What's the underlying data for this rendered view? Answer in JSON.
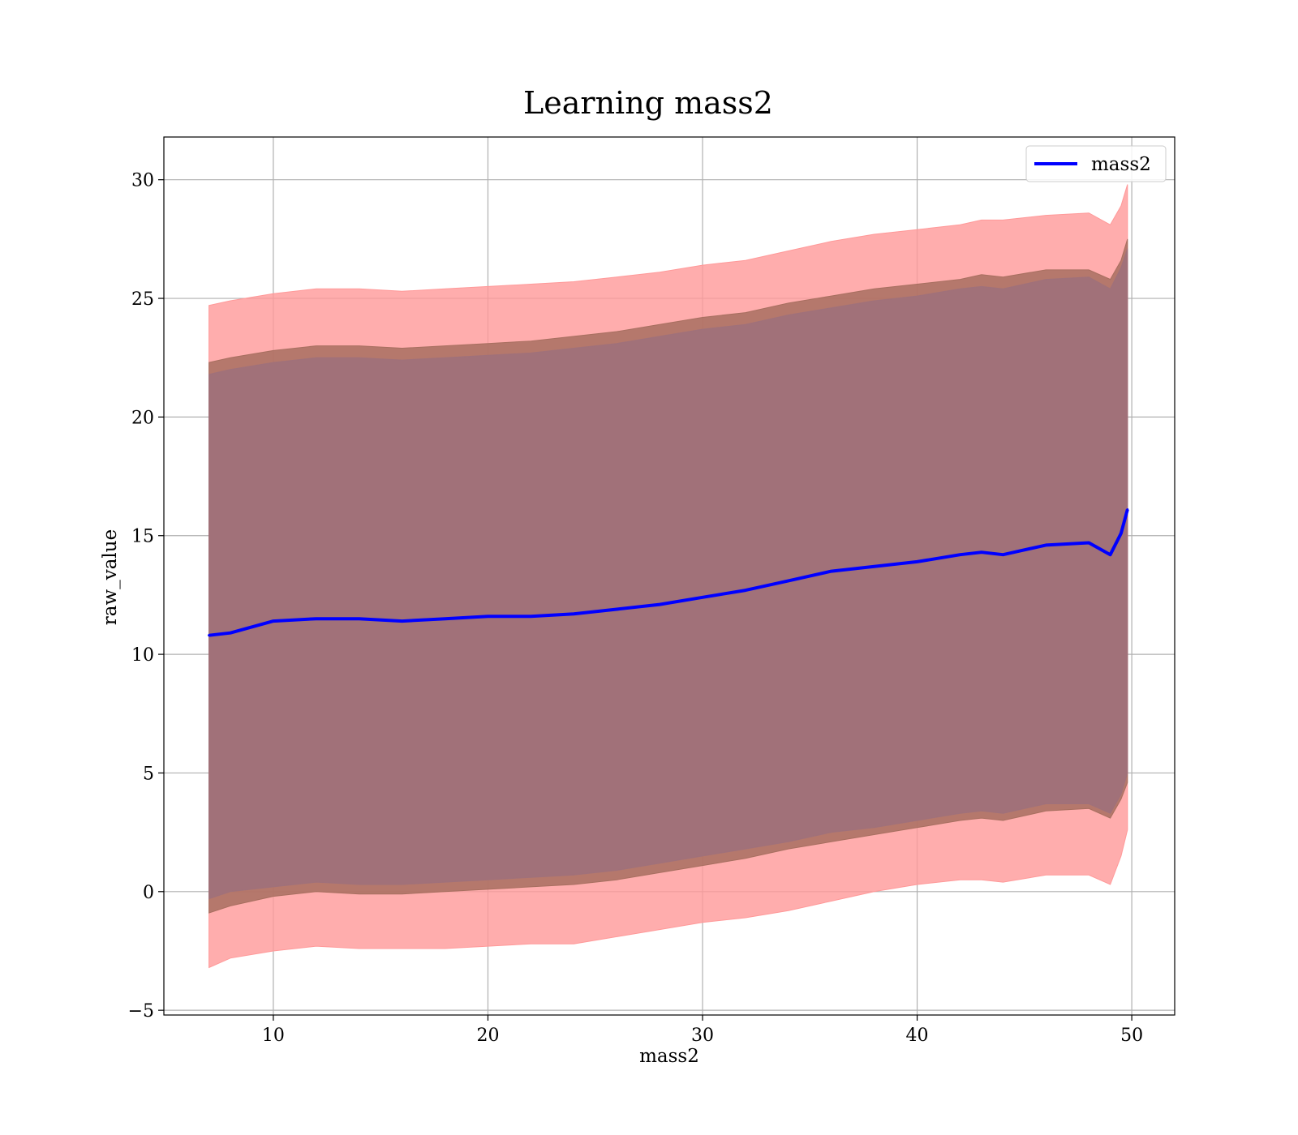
{
  "chart_data": {
    "type": "area",
    "title": "Learning mass2",
    "xlabel": "mass2",
    "ylabel": "raw_value",
    "xlim": [
      4.9,
      52.0
    ],
    "ylim": [
      -5.2,
      31.8
    ],
    "xticks": [
      10,
      20,
      30,
      40,
      50
    ],
    "yticks": [
      -5,
      0,
      5,
      10,
      15,
      20,
      25,
      30
    ],
    "xtick_labels": [
      "10",
      "20",
      "30",
      "40",
      "50"
    ],
    "ytick_labels": [
      "−5",
      "0",
      "5",
      "10",
      "15",
      "20",
      "25",
      "30"
    ],
    "grid": true,
    "legend": {
      "placement": "upper right",
      "entries": [
        "mass2"
      ]
    },
    "colors": {
      "line": "#0000ff",
      "outer_band": "#ff9999",
      "middle_band": "#a86f60",
      "inner_band": "#a0717a"
    },
    "x": [
      7.0,
      8.0,
      10.0,
      12.0,
      14.0,
      16.0,
      18.0,
      20.0,
      22.0,
      24.0,
      26.0,
      28.0,
      30.0,
      32.0,
      34.0,
      36.0,
      38.0,
      40.0,
      42.0,
      43.0,
      44.0,
      46.0,
      48.0,
      49.0,
      49.5,
      49.8
    ],
    "series": [
      {
        "name": "mass2",
        "values": [
          10.8,
          10.9,
          11.4,
          11.5,
          11.5,
          11.4,
          11.5,
          11.6,
          11.6,
          11.7,
          11.9,
          12.1,
          12.4,
          12.7,
          13.1,
          13.5,
          13.7,
          13.9,
          14.2,
          14.3,
          14.2,
          14.6,
          14.7,
          14.2,
          15.1,
          16.1
        ]
      }
    ],
    "bands": [
      {
        "lower": [
          -3.2,
          -2.8,
          -2.5,
          -2.3,
          -2.4,
          -2.4,
          -2.4,
          -2.3,
          -2.2,
          -2.2,
          -1.9,
          -1.6,
          -1.3,
          -1.1,
          -0.8,
          -0.4,
          0.0,
          0.3,
          0.5,
          0.5,
          0.4,
          0.7,
          0.7,
          0.3,
          1.5,
          2.6
        ],
        "upper": [
          24.7,
          24.9,
          25.2,
          25.4,
          25.4,
          25.3,
          25.4,
          25.5,
          25.6,
          25.7,
          25.9,
          26.1,
          26.4,
          26.6,
          27.0,
          27.4,
          27.7,
          27.9,
          28.1,
          28.3,
          28.3,
          28.5,
          28.6,
          28.1,
          28.9,
          29.8
        ]
      },
      {
        "lower": [
          -0.9,
          -0.6,
          -0.2,
          0.0,
          -0.1,
          -0.1,
          0.0,
          0.1,
          0.2,
          0.3,
          0.5,
          0.8,
          1.1,
          1.4,
          1.8,
          2.1,
          2.4,
          2.7,
          3.0,
          3.1,
          3.0,
          3.4,
          3.5,
          3.1,
          3.9,
          4.6
        ],
        "upper": [
          22.3,
          22.5,
          22.8,
          23.0,
          23.0,
          22.9,
          23.0,
          23.1,
          23.2,
          23.4,
          23.6,
          23.9,
          24.2,
          24.4,
          24.8,
          25.1,
          25.4,
          25.6,
          25.8,
          26.0,
          25.9,
          26.2,
          26.2,
          25.8,
          26.6,
          27.5
        ]
      },
      {
        "lower": [
          -0.3,
          0.0,
          0.2,
          0.4,
          0.3,
          0.3,
          0.4,
          0.5,
          0.6,
          0.7,
          0.9,
          1.2,
          1.5,
          1.8,
          2.1,
          2.5,
          2.7,
          3.0,
          3.3,
          3.4,
          3.3,
          3.7,
          3.7,
          3.3,
          4.1,
          5.0
        ],
        "upper": [
          21.8,
          22.0,
          22.3,
          22.5,
          22.5,
          22.4,
          22.5,
          22.6,
          22.7,
          22.9,
          23.1,
          23.4,
          23.7,
          23.9,
          24.3,
          24.6,
          24.9,
          25.1,
          25.4,
          25.5,
          25.4,
          25.8,
          25.9,
          25.4,
          26.3,
          27.1
        ]
      }
    ]
  }
}
